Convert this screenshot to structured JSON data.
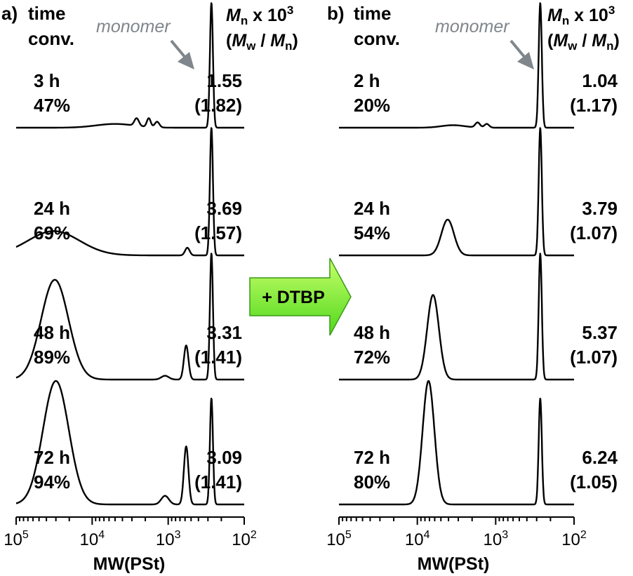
{
  "chart_data": [
    {
      "type": "line",
      "panel_label": "a)",
      "header_time": "time",
      "header_conv": "conv.",
      "header_mn_symbol": "M",
      "header_mn_sub": "n",
      "header_mn_rest": " x 10",
      "header_mn_exp": "3",
      "header_ratio_open": "(",
      "header_mw_symbol": "M",
      "header_mw_sub": "w",
      "header_ratio_sep": " / ",
      "header_mn2_symbol": "M",
      "header_mn2_sub": "n",
      "header_ratio_close": ")",
      "annotation": "monomer",
      "xlabel": "MW(PSt)",
      "xscale": "log",
      "xreversed": true,
      "xlim": [
        100000,
        100
      ],
      "x_ticks": [
        {
          "base": "10",
          "exp": "5"
        },
        {
          "base": "10",
          "exp": "4"
        },
        {
          "base": "10",
          "exp": "3"
        },
        {
          "base": "10",
          "exp": "2"
        }
      ],
      "traces": [
        {
          "time": "3 h",
          "conv": "47%",
          "mn": "1.55",
          "pdi": "(1.82)",
          "peaks": [
            {
              "mw": 270,
              "h": 1.0,
              "w": 0.02
            },
            {
              "mw": 1400,
              "h": 0.045,
              "w": 0.03
            },
            {
              "mw": 1800,
              "h": 0.07,
              "w": 0.025
            },
            {
              "mw": 2600,
              "h": 0.06,
              "w": 0.03
            },
            {
              "mw": 5000,
              "h": 0.03,
              "w": 0.25
            }
          ]
        },
        {
          "time": "24 h",
          "conv": "69%",
          "mn": "3.69",
          "pdi": "(1.57)",
          "peaks": [
            {
              "mw": 270,
              "h": 1.0,
              "w": 0.02
            },
            {
              "mw": 560,
              "h": 0.06,
              "w": 0.03
            },
            {
              "mw": 32000,
              "h": 0.19,
              "w": 0.34
            }
          ]
        },
        {
          "time": "48 h",
          "conv": "89%",
          "mn": "3.31",
          "pdi": "(1.41)",
          "peaks": [
            {
              "mw": 270,
              "h": 1.0,
              "w": 0.02
            },
            {
              "mw": 580,
              "h": 0.27,
              "w": 0.03
            },
            {
              "mw": 1100,
              "h": 0.03,
              "w": 0.05
            },
            {
              "mw": 31000,
              "h": 0.79,
              "w": 0.18
            }
          ]
        },
        {
          "time": "72 h",
          "conv": "94%",
          "mn": "3.09",
          "pdi": "(1.41)",
          "peaks": [
            {
              "mw": 270,
              "h": 0.86,
              "w": 0.02
            },
            {
              "mw": 580,
              "h": 0.47,
              "w": 0.03
            },
            {
              "mw": 1100,
              "h": 0.07,
              "w": 0.05
            },
            {
              "mw": 30000,
              "h": 1.0,
              "w": 0.17
            }
          ]
        }
      ]
    },
    {
      "type": "line",
      "panel_label": "b)",
      "header_time": "time",
      "header_conv": "conv.",
      "header_mn_symbol": "M",
      "header_mn_sub": "n",
      "header_mn_rest": " x 10",
      "header_mn_exp": "3",
      "header_ratio_open": "(",
      "header_mw_symbol": "M",
      "header_mw_sub": "w",
      "header_ratio_sep": " / ",
      "header_mn2_symbol": "M",
      "header_mn2_sub": "n",
      "header_ratio_close": ")",
      "annotation": "monomer",
      "xlabel": "MW(PSt)",
      "xscale": "log",
      "xreversed": true,
      "xlim": [
        100000,
        100
      ],
      "x_ticks": [
        {
          "base": "10",
          "exp": "5"
        },
        {
          "base": "10",
          "exp": "4"
        },
        {
          "base": "10",
          "exp": "3"
        },
        {
          "base": "10",
          "exp": "2"
        }
      ],
      "traces": [
        {
          "time": "2 h",
          "conv": "20%",
          "mn": "1.04",
          "pdi": "(1.17)",
          "peaks": [
            {
              "mw": 270,
              "h": 1.0,
              "w": 0.02
            },
            {
              "mw": 1300,
              "h": 0.03,
              "w": 0.03
            },
            {
              "mw": 1700,
              "h": 0.04,
              "w": 0.03
            },
            {
              "mw": 3500,
              "h": 0.02,
              "w": 0.15
            }
          ]
        },
        {
          "time": "24 h",
          "conv": "54%",
          "mn": "3.79",
          "pdi": "(1.07)",
          "peaks": [
            {
              "mw": 270,
              "h": 1.0,
              "w": 0.02
            },
            {
              "mw": 4100,
              "h": 0.28,
              "w": 0.08
            }
          ]
        },
        {
          "time": "48 h",
          "conv": "72%",
          "mn": "5.37",
          "pdi": "(1.07)",
          "peaks": [
            {
              "mw": 270,
              "h": 1.0,
              "w": 0.02
            },
            {
              "mw": 6300,
              "h": 0.67,
              "w": 0.075
            }
          ]
        },
        {
          "time": "72 h",
          "conv": "80%",
          "mn": "6.24",
          "pdi": "(1.05)",
          "peaks": [
            {
              "mw": 270,
              "h": 0.86,
              "w": 0.02
            },
            {
              "mw": 7200,
              "h": 1.0,
              "w": 0.075
            }
          ]
        }
      ]
    }
  ],
  "arrow": {
    "label": "+ DTBP",
    "fill_top": "#c8ff6a",
    "fill_bottom": "#4fd81c",
    "stroke": "#3a9a18"
  }
}
